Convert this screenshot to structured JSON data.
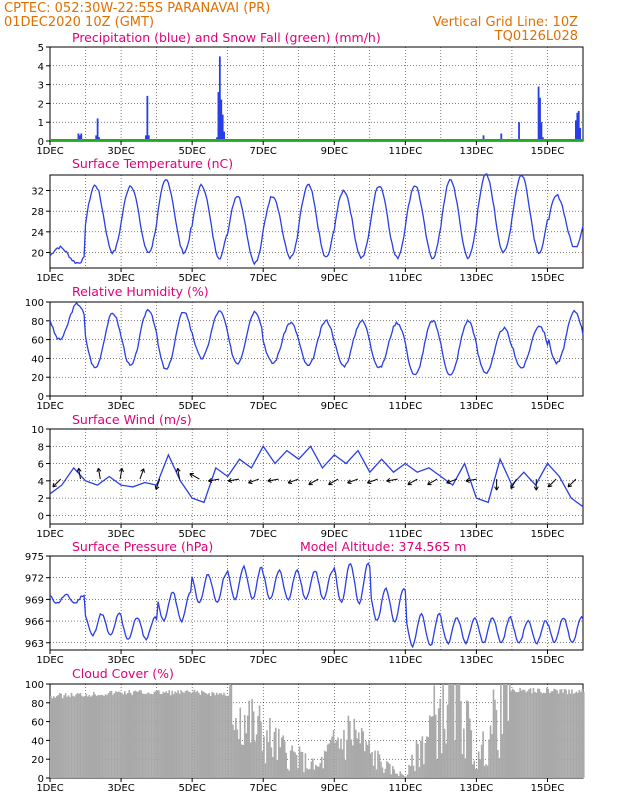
{
  "header": {
    "line1": "CPTEC:   052:30W-22:55S   PARANAVAI (PR)",
    "line2": "01DEC2020 10Z (GMT)",
    "grid_note": "Vertical Grid Line: 10Z",
    "code": "TQ0126L028"
  },
  "colors": {
    "header": "#e07000",
    "panel_title": "#e0007a",
    "series": "#2a3ee6",
    "snow": "#22aa22",
    "cloud": "#a9a9a9",
    "grid": "#000000"
  },
  "chart_data": [
    {
      "type": "bar",
      "title": "Precipitation (blue) and Snow Fall (green) (mm/h)",
      "x_start": "01DEC",
      "x_end": "16DEC",
      "x_tick_labels": [
        "1DEC",
        "3DEC",
        "5DEC",
        "7DEC",
        "9DEC",
        "11DEC",
        "13DEC",
        "15DEC"
      ],
      "ylim": [
        0,
        5
      ],
      "yticks": [
        0,
        1,
        2,
        3,
        4,
        5
      ],
      "events": [
        {
          "day": 1.8,
          "values": [
            0.4,
            0.3,
            0.4
          ]
        },
        {
          "day": 2.3,
          "values": [
            0.3,
            1.2,
            0.2
          ]
        },
        {
          "day": 3.0,
          "values": [
            0.1
          ]
        },
        {
          "day": 3.7,
          "values": [
            0.3,
            2.4,
            0.3
          ]
        },
        {
          "day": 5.7,
          "values": [
            0.2,
            2.6,
            4.5,
            2.2,
            1.4,
            0.5
          ]
        },
        {
          "day": 13.2,
          "values": [
            0.3
          ]
        },
        {
          "day": 13.7,
          "values": [
            0.4
          ]
        },
        {
          "day": 14.2,
          "values": [
            1.0
          ]
        },
        {
          "day": 14.75,
          "values": [
            2.9,
            2.3,
            1.0,
            0.2
          ]
        },
        {
          "day": 15.8,
          "values": [
            1.1,
            1.5,
            1.6,
            0.7
          ]
        }
      ],
      "snow_values": "0 (all)"
    },
    {
      "type": "line",
      "title": "Surface Temperature (nC)",
      "ylim": [
        17,
        35
      ],
      "yticks": [
        20,
        24,
        28,
        32
      ],
      "x_tick_labels": [
        "1DEC",
        "3DEC",
        "5DEC",
        "7DEC",
        "9DEC",
        "11DEC",
        "13DEC",
        "15DEC"
      ],
      "daily_max": [
        21,
        33,
        33,
        34,
        33,
        31,
        31,
        33,
        32,
        33,
        33,
        34,
        35,
        35,
        31,
        30
      ],
      "daily_min": [
        18,
        20,
        20,
        20,
        19,
        18,
        19,
        19,
        19,
        19,
        19,
        19,
        20,
        20,
        21,
        21
      ]
    },
    {
      "type": "line",
      "title": "Relative Humidity (%)",
      "ylim": [
        0,
        100
      ],
      "yticks": [
        0,
        20,
        40,
        60,
        80,
        100
      ],
      "x_tick_labels": [
        "1DEC",
        "3DEC",
        "5DEC",
        "7DEC",
        "9DEC",
        "11DEC",
        "13DEC",
        "15DEC"
      ],
      "daily_max": [
        98,
        88,
        92,
        90,
        90,
        90,
        78,
        80,
        80,
        78,
        80,
        80,
        72,
        75,
        90,
        92
      ],
      "daily_min": [
        60,
        30,
        32,
        28,
        40,
        35,
        35,
        32,
        32,
        30,
        22,
        22,
        25,
        30,
        35,
        55
      ]
    },
    {
      "type": "line",
      "title": "Surface Wind (m/s)",
      "ylim": [
        -1,
        10
      ],
      "yticks": [
        0,
        2,
        4,
        6,
        8,
        10
      ],
      "x_tick_labels": [
        "1DEC",
        "3DEC",
        "5DEC",
        "7DEC",
        "9DEC",
        "11DEC",
        "13DEC",
        "15DEC"
      ],
      "speed_series": [
        2.5,
        3.5,
        5.5,
        4.0,
        3.5,
        4.5,
        3.5,
        3.3,
        3.8,
        3.5,
        7.0,
        4.0,
        2.0,
        1.5,
        5.5,
        4.5,
        6.5,
        5.5,
        8.0,
        6.0,
        7.5,
        6.5,
        8.0,
        5.5,
        7.0,
        6.0,
        7.5,
        5.0,
        6.5,
        5.0,
        6.0,
        5.0,
        5.5,
        4.5,
        3.5,
        6.0,
        2.0,
        1.5,
        6.5,
        3.5,
        5.0,
        3.5,
        6.0,
        4.5,
        2.0,
        1.0
      ],
      "arrow_bearings_deg": [
        225,
        350,
        350,
        10,
        20,
        200,
        350,
        300,
        260,
        260,
        250,
        260,
        250,
        240,
        240,
        250,
        250,
        260,
        240,
        240,
        250,
        260,
        180,
        210,
        180,
        225,
        225
      ]
    },
    {
      "type": "line",
      "title": "Surface Pressure (hPa)",
      "annotation": "Model Altitude: 374.565  m",
      "ylim": [
        962,
        975
      ],
      "yticks": [
        963,
        966,
        969,
        972,
        975
      ],
      "x_tick_labels": [
        "1DEC",
        "3DEC",
        "5DEC",
        "7DEC",
        "9DEC",
        "11DEC",
        "13DEC",
        "15DEC"
      ],
      "daily_max": [
        969.6,
        967.0,
        966.5,
        970.0,
        972.5,
        973.5,
        973.0,
        973.0,
        974.0,
        970.5,
        967.0,
        966.5,
        966.5,
        966.0,
        966.5,
        965.0
      ],
      "daily_min": [
        968.5,
        964.0,
        963.5,
        966.0,
        968.5,
        969.0,
        969.0,
        969.0,
        968.5,
        966.0,
        962.5,
        963.0,
        963.0,
        963.0,
        963.0,
        963.0
      ]
    },
    {
      "type": "bar",
      "title": "Cloud Cover (%)",
      "ylim": [
        0,
        100
      ],
      "yticks": [
        0,
        20,
        40,
        60,
        80,
        100
      ],
      "x_tick_labels": [
        "1DEC",
        "3DEC",
        "5DEC",
        "7DEC",
        "9DEC",
        "11DEC",
        "13DEC",
        "15DEC"
      ],
      "keypoints": [
        [
          1.0,
          90
        ],
        [
          2.0,
          92
        ],
        [
          3.0,
          94
        ],
        [
          4.0,
          94
        ],
        [
          5.0,
          94
        ],
        [
          6.0,
          92
        ],
        [
          6.5,
          60
        ],
        [
          7.0,
          45
        ],
        [
          7.5,
          30
        ],
        [
          8.0,
          20
        ],
        [
          8.5,
          10
        ],
        [
          9.0,
          35
        ],
        [
          9.5,
          50
        ],
        [
          10.0,
          25
        ],
        [
          10.5,
          10
        ],
        [
          11.0,
          2
        ],
        [
          11.5,
          40
        ],
        [
          12.0,
          75
        ],
        [
          12.5,
          85
        ],
        [
          13.0,
          15
        ],
        [
          13.5,
          60
        ],
        [
          14.0,
          96
        ],
        [
          14.5,
          96
        ],
        [
          15.0,
          96
        ],
        [
          15.5,
          95
        ],
        [
          16.0,
          95
        ]
      ]
    }
  ]
}
